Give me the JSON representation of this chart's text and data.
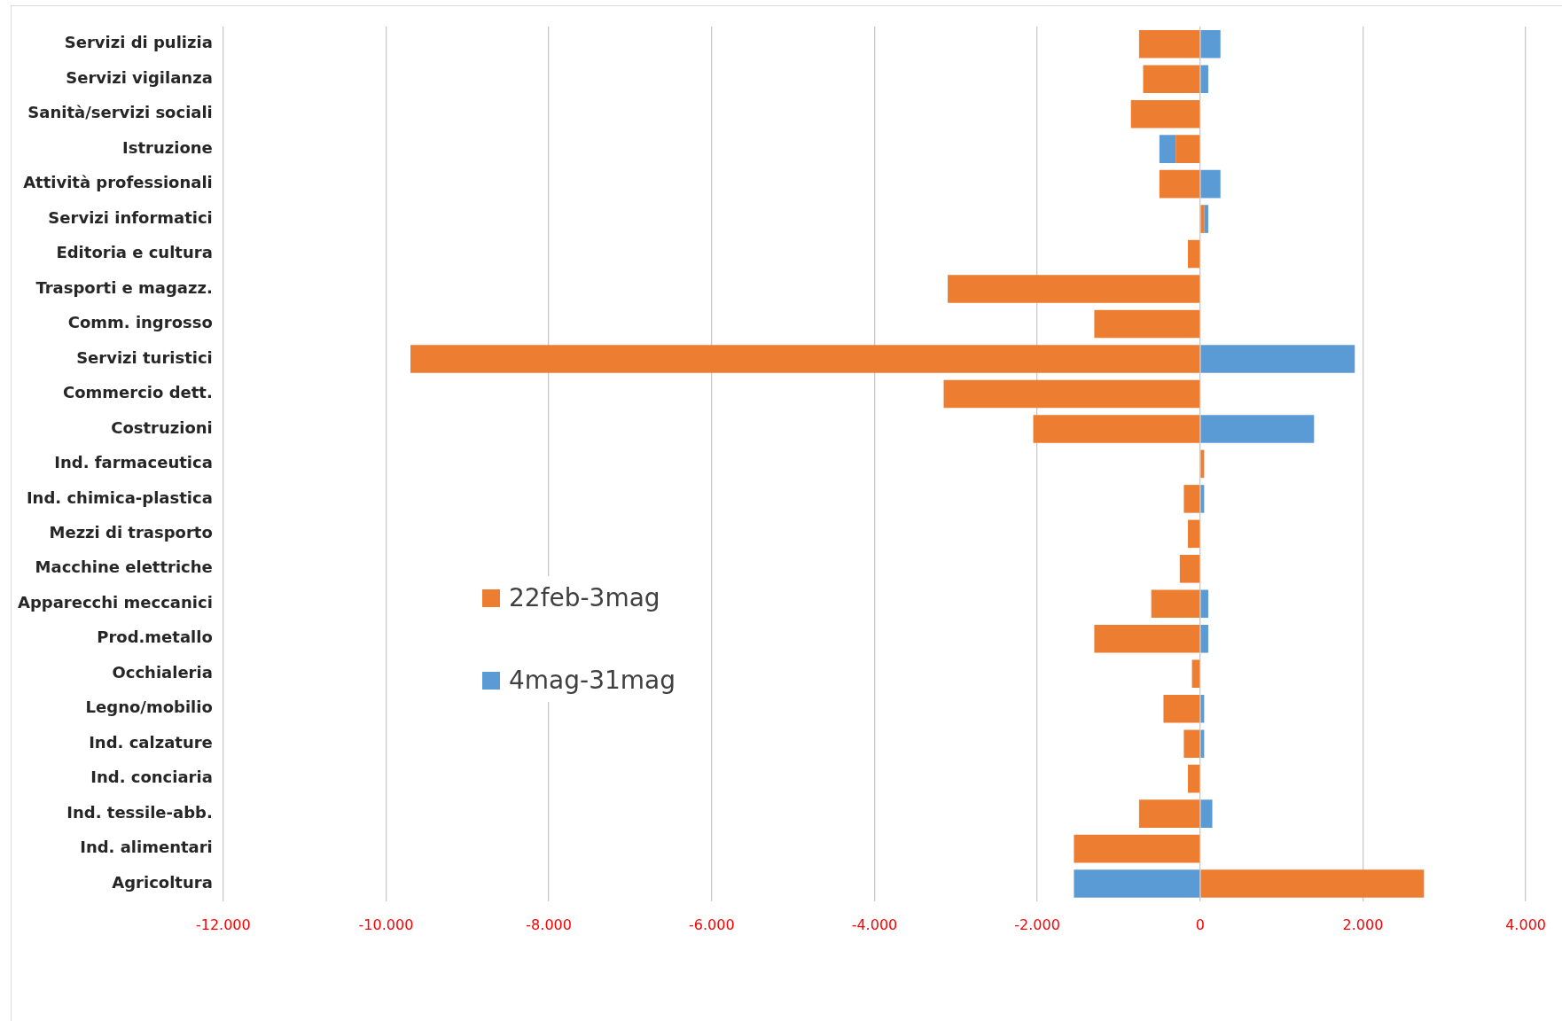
{
  "chart_data": {
    "type": "bar",
    "orientation": "horizontal",
    "categories": [
      "Servizi di pulizia",
      "Servizi vigilanza",
      "Sanità/servizi sociali",
      "Istruzione",
      "Attività professionali",
      "Servizi informatici",
      "Editoria e cultura",
      "Trasporti e magazz.",
      "Comm. ingrosso",
      "Servizi turistici",
      "Commercio dett.",
      "Costruzioni",
      "Ind. farmaceutica",
      "Ind. chimica-plastica",
      "Mezzi di trasporto",
      "Macchine elettriche",
      "Apparecchi meccanici",
      "Prod.metallo",
      "Occhialeria",
      "Legno/mobilio",
      "Ind. calzature",
      "Ind. conciaria",
      "Ind. tessile-abb.",
      "Ind. alimentari",
      "Agricoltura"
    ],
    "series": [
      {
        "name": "22feb-3mag",
        "color": "#ed7d31",
        "values": [
          -750,
          -700,
          -850,
          -300,
          -500,
          50,
          -150,
          -3100,
          -1300,
          -9700,
          -3150,
          -2050,
          50,
          -200,
          -150,
          -250,
          -600,
          -1300,
          -100,
          -450,
          -200,
          -150,
          -750,
          -1550,
          2750
        ]
      },
      {
        "name": "4mag-31mag",
        "color": "#5b9bd5",
        "values": [
          250,
          100,
          null,
          -200,
          250,
          50,
          null,
          null,
          null,
          1900,
          null,
          1400,
          null,
          50,
          null,
          null,
          100,
          100,
          null,
          50,
          50,
          null,
          150,
          null,
          -1550
        ]
      }
    ],
    "xlim": [
      -12000,
      4000
    ],
    "xticks": [
      {
        "value": -12000,
        "label": "-12.000"
      },
      {
        "value": -10000,
        "label": "-10.000"
      },
      {
        "value": -8000,
        "label": "-8.000"
      },
      {
        "value": -6000,
        "label": "-6.000"
      },
      {
        "value": -4000,
        "label": "-4.000"
      },
      {
        "value": -2000,
        "label": "-2.000"
      },
      0,
      {
        "value": 2000,
        "label": "2.000"
      },
      {
        "value": 4000,
        "label": "4.000"
      }
    ],
    "stacked": true,
    "grid": "x",
    "legend": "center left"
  }
}
